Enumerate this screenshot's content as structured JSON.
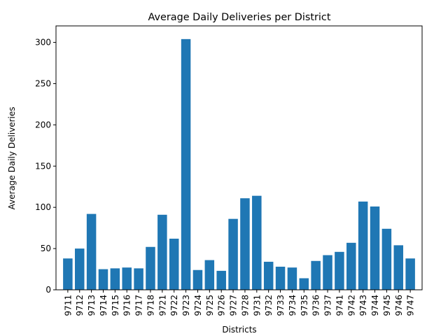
{
  "chart_data": {
    "type": "bar",
    "title": "Average Daily Deliveries per District",
    "xlabel": "Districts",
    "ylabel": "Average Daily Deliveries",
    "ylim": [
      0,
      320
    ],
    "yticks": [
      0,
      50,
      100,
      150,
      200,
      250,
      300
    ],
    "grid": false,
    "bar_color": "#1f77b4",
    "categories": [
      "9711",
      "9712",
      "9713",
      "9714",
      "9715",
      "9716",
      "9717",
      "9718",
      "9721",
      "9722",
      "9723",
      "9724",
      "9725",
      "9726",
      "9727",
      "9728",
      "9731",
      "9732",
      "9733",
      "9734",
      "9735",
      "9736",
      "9737",
      "9741",
      "9742",
      "9743",
      "9744",
      "9745",
      "9746",
      "9747"
    ],
    "values": [
      38,
      50,
      92,
      25,
      26,
      27,
      26,
      52,
      91,
      62,
      304,
      24,
      36,
      23,
      86,
      111,
      114,
      34,
      28,
      27,
      14,
      35,
      42,
      46,
      57,
      107,
      101,
      74,
      54,
      38
    ]
  }
}
